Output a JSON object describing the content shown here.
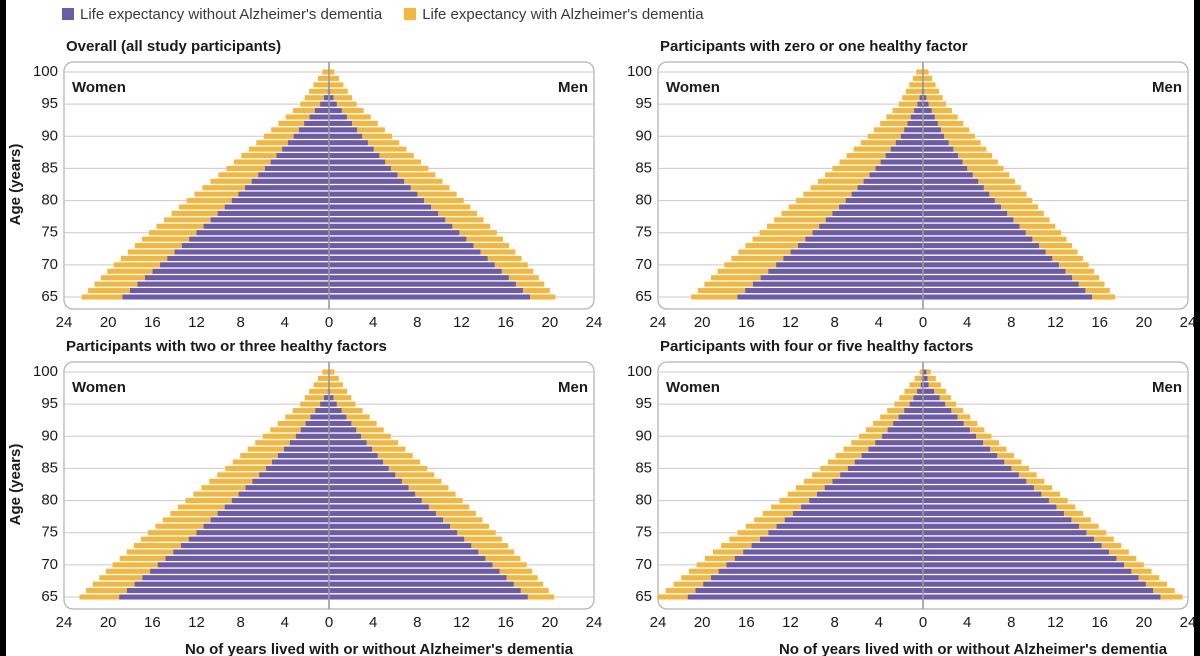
{
  "colors": {
    "without": "#6a5bab",
    "with": "#f3b63f",
    "grid": "#c9c9c9",
    "frame": "#b5b5b5",
    "center": "#9a9a9a"
  },
  "legend": {
    "without": "Life expectancy without Alzheimer's dementia",
    "with": "Life expectancy with Alzheimer's dementia"
  },
  "chart_data": [
    {
      "type": "bar",
      "title": "Overall (all study participants)",
      "left_label": "Women",
      "right_label": "Men",
      "ylabel": "Age (years)",
      "xlabel": "",
      "age_range": [
        65,
        100
      ],
      "yticks": [
        65,
        70,
        75,
        80,
        85,
        90,
        95,
        100
      ],
      "xticks": [
        "24",
        "20",
        "16",
        "12",
        "8",
        "4",
        "0",
        "4",
        "8",
        "12",
        "16",
        "20",
        "24"
      ],
      "xlim": [
        -24,
        24
      ],
      "series": [
        {
          "name": "Women, without",
          "anchors": [
            [
              65,
              18.7
            ],
            [
              70,
              15.3
            ],
            [
              75,
              12.0
            ],
            [
              80,
              8.8
            ],
            [
              85,
              5.8
            ],
            [
              90,
              3.2
            ],
            [
              95,
              0.8
            ],
            [
              97,
              0.1
            ],
            [
              100,
              0
            ]
          ]
        },
        {
          "name": "Women, with",
          "anchors": [
            [
              65,
              22.4
            ],
            [
              70,
              19.5
            ],
            [
              75,
              16.3
            ],
            [
              80,
              12.9
            ],
            [
              85,
              9.3
            ],
            [
              90,
              5.9
            ],
            [
              95,
              2.6
            ],
            [
              100,
              0.6
            ]
          ]
        },
        {
          "name": "Men, without",
          "anchors": [
            [
              65,
              18.2
            ],
            [
              70,
              15.0
            ],
            [
              75,
              11.8
            ],
            [
              80,
              8.6
            ],
            [
              85,
              5.6
            ],
            [
              90,
              3.0
            ],
            [
              95,
              0.7
            ],
            [
              97,
              0.1
            ],
            [
              100,
              0
            ]
          ]
        },
        {
          "name": "Men, with",
          "anchors": [
            [
              65,
              20.5
            ],
            [
              70,
              18.0
            ],
            [
              75,
              15.2
            ],
            [
              80,
              12.2
            ],
            [
              85,
              9.0
            ],
            [
              90,
              5.7
            ],
            [
              95,
              2.5
            ],
            [
              100,
              0.5
            ]
          ]
        }
      ]
    },
    {
      "type": "bar",
      "title": "Participants with zero or one healthy factor",
      "left_label": "Women",
      "right_label": "Men",
      "ylabel": "",
      "xlabel": "",
      "age_range": [
        65,
        100
      ],
      "yticks": [
        65,
        70,
        75,
        80,
        85,
        90,
        95,
        100
      ],
      "xticks": [
        "24",
        "20",
        "16",
        "12",
        "8",
        "4",
        "0",
        "4",
        "8",
        "12",
        "16",
        "20",
        "24"
      ],
      "xlim": [
        -24,
        24
      ],
      "series": [
        {
          "name": "Women, without",
          "anchors": [
            [
              65,
              16.8
            ],
            [
              70,
              13.3
            ],
            [
              75,
              10.0
            ],
            [
              80,
              7.0
            ],
            [
              85,
              4.3
            ],
            [
              90,
              2.0
            ],
            [
              95,
              0.5
            ],
            [
              97,
              0.1
            ],
            [
              100,
              0
            ]
          ]
        },
        {
          "name": "Women, with",
          "anchors": [
            [
              65,
              21.0
            ],
            [
              70,
              18.0
            ],
            [
              75,
              14.8
            ],
            [
              80,
              11.5
            ],
            [
              85,
              8.2
            ],
            [
              90,
              5.0
            ],
            [
              95,
              2.2
            ],
            [
              100,
              0.6
            ]
          ]
        },
        {
          "name": "Men, without",
          "anchors": [
            [
              65,
              15.3
            ],
            [
              70,
              12.3
            ],
            [
              75,
              9.3
            ],
            [
              80,
              6.5
            ],
            [
              85,
              4.0
            ],
            [
              90,
              1.9
            ],
            [
              95,
              0.5
            ],
            [
              97,
              0.1
            ],
            [
              100,
              0
            ]
          ]
        },
        {
          "name": "Men, with",
          "anchors": [
            [
              65,
              17.4
            ],
            [
              70,
              15.0
            ],
            [
              75,
              12.5
            ],
            [
              80,
              9.9
            ],
            [
              85,
              7.3
            ],
            [
              90,
              4.7
            ],
            [
              95,
              2.1
            ],
            [
              100,
              0.5
            ]
          ]
        }
      ]
    },
    {
      "type": "bar",
      "title": "Participants with two or three healthy factors",
      "left_label": "Women",
      "right_label": "Men",
      "ylabel": "Age (years)",
      "xlabel": "No of years lived with or without Alzheimer's dementia",
      "age_range": [
        65,
        100
      ],
      "yticks": [
        65,
        70,
        75,
        80,
        85,
        90,
        95,
        100
      ],
      "xticks": [
        "24",
        "20",
        "16",
        "12",
        "8",
        "4",
        "0",
        "4",
        "8",
        "12",
        "16",
        "20",
        "24"
      ],
      "xlim": [
        -24,
        24
      ],
      "series": [
        {
          "name": "Women, without",
          "anchors": [
            [
              65,
              19.0
            ],
            [
              70,
              15.5
            ],
            [
              75,
              12.0
            ],
            [
              80,
              8.8
            ],
            [
              85,
              5.7
            ],
            [
              90,
              3.0
            ],
            [
              95,
              0.8
            ],
            [
              97,
              0.1
            ],
            [
              100,
              0
            ]
          ]
        },
        {
          "name": "Women, with",
          "anchors": [
            [
              65,
              22.6
            ],
            [
              70,
              19.6
            ],
            [
              75,
              16.4
            ],
            [
              80,
              13.0
            ],
            [
              85,
              9.4
            ],
            [
              90,
              6.0
            ],
            [
              95,
              2.6
            ],
            [
              100,
              0.6
            ]
          ]
        },
        {
          "name": "Men, without",
          "anchors": [
            [
              65,
              18.0
            ],
            [
              70,
              14.8
            ],
            [
              75,
              11.6
            ],
            [
              80,
              8.4
            ],
            [
              85,
              5.4
            ],
            [
              90,
              2.9
            ],
            [
              95,
              0.7
            ],
            [
              97,
              0.1
            ],
            [
              100,
              0
            ]
          ]
        },
        {
          "name": "Men, with",
          "anchors": [
            [
              65,
              20.4
            ],
            [
              70,
              17.9
            ],
            [
              75,
              15.1
            ],
            [
              80,
              12.1
            ],
            [
              85,
              8.9
            ],
            [
              90,
              5.6
            ],
            [
              95,
              2.4
            ],
            [
              100,
              0.5
            ]
          ]
        }
      ]
    },
    {
      "type": "bar",
      "title": "Participants with four or five healthy factors",
      "left_label": "Women",
      "right_label": "Men",
      "ylabel": "",
      "xlabel": "No of years lived with or without Alzheimer's dementia",
      "age_range": [
        65,
        100
      ],
      "yticks": [
        65,
        70,
        75,
        80,
        85,
        90,
        95,
        100
      ],
      "xticks": [
        "24",
        "20",
        "16",
        "12",
        "8",
        "4",
        "0",
        "4",
        "8",
        "12",
        "16",
        "20",
        "24"
      ],
      "xlim": [
        -24,
        24
      ],
      "series": [
        {
          "name": "Women, without",
          "anchors": [
            [
              65,
              21.3
            ],
            [
              70,
              17.8
            ],
            [
              75,
              14.0
            ],
            [
              80,
              10.3
            ],
            [
              85,
              6.8
            ],
            [
              90,
              3.7
            ],
            [
              95,
              1.2
            ],
            [
              98,
              0.2
            ],
            [
              100,
              0
            ]
          ]
        },
        {
          "name": "Women, with",
          "anchors": [
            [
              65,
              24.0
            ],
            [
              70,
              20.5
            ],
            [
              75,
              16.8
            ],
            [
              80,
              13.0
            ],
            [
              85,
              9.3
            ],
            [
              90,
              5.8
            ],
            [
              95,
              2.6
            ],
            [
              100,
              0.3
            ]
          ]
        },
        {
          "name": "Men, without",
          "anchors": [
            [
              65,
              21.5
            ],
            [
              70,
              18.2
            ],
            [
              75,
              14.8
            ],
            [
              80,
              11.4
            ],
            [
              85,
              8.0
            ],
            [
              90,
              4.8
            ],
            [
              95,
              2.0
            ],
            [
              98,
              0.5
            ],
            [
              100,
              0.3
            ]
          ]
        },
        {
          "name": "Men, with",
          "anchors": [
            [
              65,
              23.5
            ],
            [
              70,
              20.0
            ],
            [
              75,
              16.6
            ],
            [
              80,
              13.1
            ],
            [
              85,
              9.6
            ],
            [
              90,
              6.2
            ],
            [
              95,
              3.0
            ],
            [
              100,
              0.7
            ]
          ]
        }
      ]
    }
  ]
}
